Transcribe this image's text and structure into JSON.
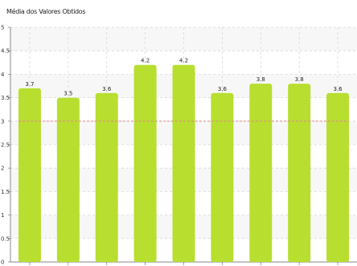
{
  "chart_data": {
    "type": "bar",
    "title": "Média dos Valores Obtidos",
    "categories": [
      "",
      "",
      "",
      "",
      "",
      "",
      "",
      "",
      ""
    ],
    "values": [
      3.7,
      3.5,
      3.6,
      4.2,
      4.2,
      3.6,
      3.8,
      3.8,
      3.6
    ],
    "data_labels": [
      "3.7",
      "3.5",
      "3.6",
      "4.2",
      "4.2",
      "3.6",
      "3.8",
      "3.8",
      "3.6"
    ],
    "reference_line": 3.0,
    "ylim": [
      0,
      5
    ],
    "yticks": [
      "0",
      "0.5",
      "1",
      "1.5",
      "2",
      "2.5",
      "3",
      "3.5",
      "4",
      "4.5",
      "5"
    ],
    "grid": true,
    "xlabel": "",
    "ylabel": "",
    "colors": {
      "bar": "#b8de30",
      "reference_line": "#e08a8a",
      "band": "#f7f7f7",
      "grid": "#d8d8d8",
      "axis": "#888888"
    }
  }
}
